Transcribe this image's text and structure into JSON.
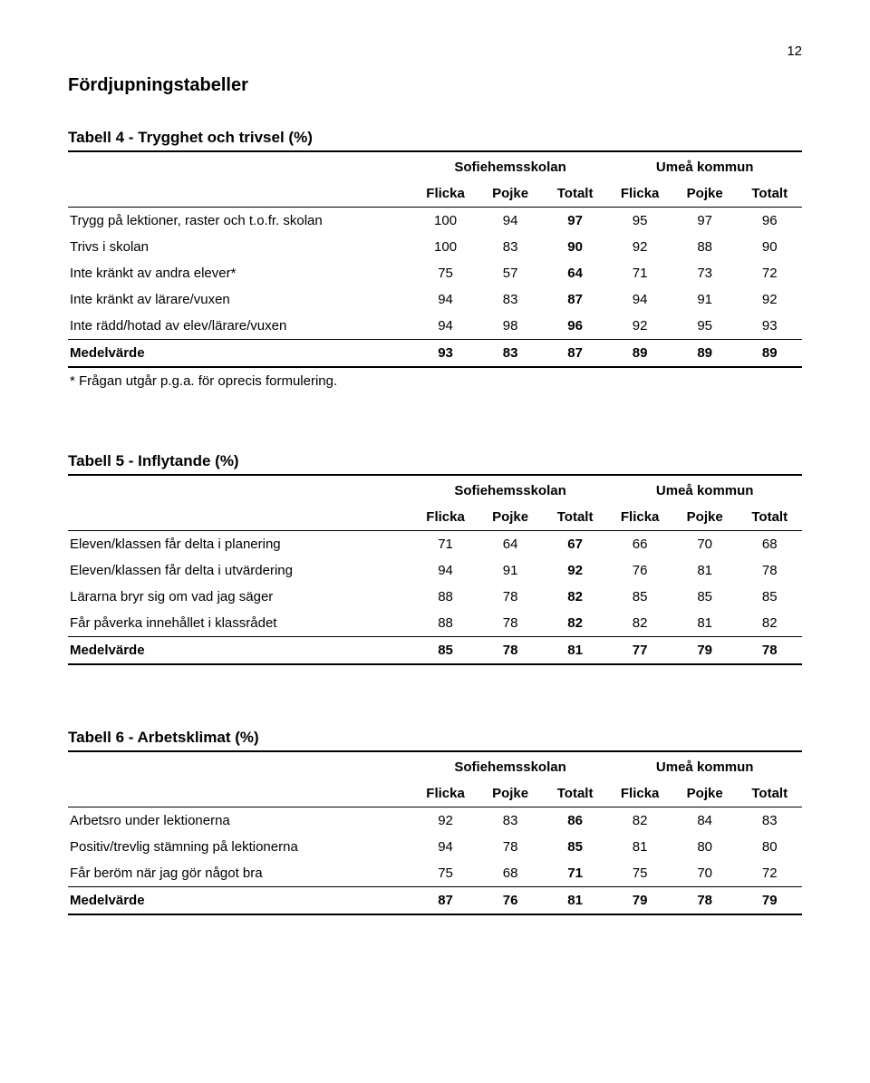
{
  "page_number": "12",
  "main_title": "Fördjupningstabeller",
  "group_headers": {
    "left": "Sofiehemsskolan",
    "right": "Umeå kommun"
  },
  "col_headers": [
    "Flicka",
    "Pojke",
    "Totalt",
    "Flicka",
    "Pojke",
    "Totalt"
  ],
  "tables": [
    {
      "title": "Tabell 4 - Trygghet och trivsel (%)",
      "rows": [
        {
          "label": "Trygg på lektioner, raster och t.o.fr. skolan",
          "values": [
            "100",
            "94",
            "97",
            "95",
            "97",
            "96"
          ]
        },
        {
          "label": "Trivs i skolan",
          "values": [
            "100",
            "83",
            "90",
            "92",
            "88",
            "90"
          ]
        },
        {
          "label": "Inte kränkt av andra elever*",
          "values": [
            "75",
            "57",
            "64",
            "71",
            "73",
            "72"
          ]
        },
        {
          "label": "Inte kränkt av lärare/vuxen",
          "values": [
            "94",
            "83",
            "87",
            "94",
            "91",
            "92"
          ]
        },
        {
          "label": "Inte rädd/hotad av elev/lärare/vuxen",
          "values": [
            "94",
            "98",
            "96",
            "92",
            "95",
            "93"
          ]
        }
      ],
      "summary": {
        "label": "Medelvärde",
        "values": [
          "93",
          "83",
          "87",
          "89",
          "89",
          "89"
        ]
      },
      "footnote": "* Frågan utgår p.g.a. för oprecis formulering."
    },
    {
      "title": "Tabell 5 - Inflytande (%)",
      "rows": [
        {
          "label": "Eleven/klassen får delta i planering",
          "values": [
            "71",
            "64",
            "67",
            "66",
            "70",
            "68"
          ]
        },
        {
          "label": "Eleven/klassen får delta i utvärdering",
          "values": [
            "94",
            "91",
            "92",
            "76",
            "81",
            "78"
          ]
        },
        {
          "label": "Lärarna bryr sig om vad jag säger",
          "values": [
            "88",
            "78",
            "82",
            "85",
            "85",
            "85"
          ]
        },
        {
          "label": "Får påverka innehållet i klassrådet",
          "values": [
            "88",
            "78",
            "82",
            "82",
            "81",
            "82"
          ]
        }
      ],
      "summary": {
        "label": "Medelvärde",
        "values": [
          "85",
          "78",
          "81",
          "77",
          "79",
          "78"
        ]
      }
    },
    {
      "title": "Tabell 6 - Arbetsklimat (%)",
      "rows": [
        {
          "label": "Arbetsro under lektionerna",
          "values": [
            "92",
            "83",
            "86",
            "82",
            "84",
            "83"
          ]
        },
        {
          "label": "Positiv/trevlig stämning på lektionerna",
          "values": [
            "94",
            "78",
            "85",
            "81",
            "80",
            "80"
          ]
        },
        {
          "label": "Får beröm när jag gör något bra",
          "values": [
            "75",
            "68",
            "71",
            "75",
            "70",
            "72"
          ]
        }
      ],
      "summary": {
        "label": "Medelvärde",
        "values": [
          "87",
          "76",
          "81",
          "79",
          "78",
          "79"
        ]
      }
    }
  ]
}
